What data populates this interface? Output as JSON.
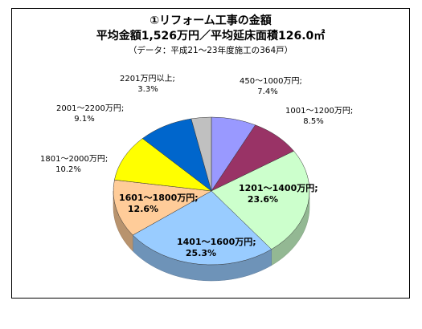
{
  "colors": {
    "frame_border": "#000000",
    "slice_colors": [
      "#9999FF",
      "#993366",
      "#CCFFCC",
      "#99CCFF",
      "#FFCC99",
      "#FFFF00",
      "#0066CC",
      "#C0C0C0"
    ]
  },
  "chart_data": {
    "type": "pie",
    "style": "3d",
    "title": "①リフォーム工事の金額",
    "subtitle": "平均金額1,526万円／平均延床面積126.0㎡",
    "note": "（データ：平成21～23年度施工の364戸）",
    "slices": [
      {
        "label": "450～1000万円",
        "value": 7.4,
        "value_text": "7.4%"
      },
      {
        "label": "1001～1200万円",
        "value": 8.5,
        "value_text": "8.5%"
      },
      {
        "label": "1201～1400万円",
        "value": 23.6,
        "value_text": "23.6%"
      },
      {
        "label": "1401～1600万円",
        "value": 25.3,
        "value_text": "25.3%"
      },
      {
        "label": "1601～1800万円",
        "value": 12.6,
        "value_text": "12.6%"
      },
      {
        "label": "1801～2000万円",
        "value": 10.2,
        "value_text": "10.2%"
      },
      {
        "label": "2001～2200万円",
        "value": 9.1,
        "value_text": "9.1%"
      },
      {
        "label": "2201万円以上",
        "value": 3.3,
        "value_text": "3.3%"
      }
    ]
  }
}
